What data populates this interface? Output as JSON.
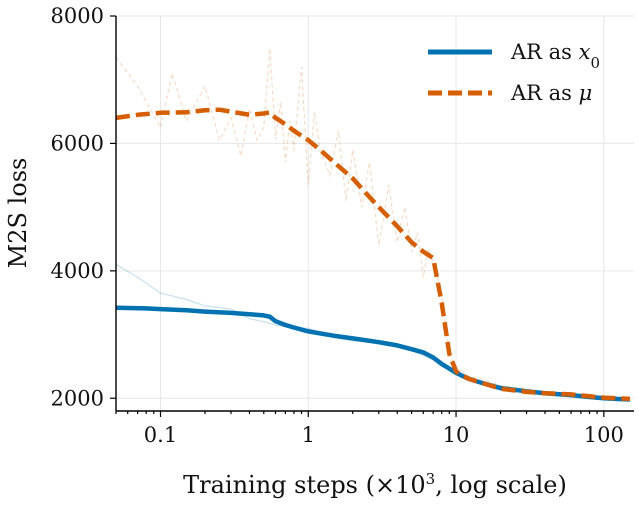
{
  "chart_data": {
    "type": "line",
    "xlabel_parts": [
      "Training steps (×10",
      "3",
      ", log scale)"
    ],
    "ylabel": "M2S loss",
    "xscale": "log",
    "xlim": [
      0.05,
      160
    ],
    "ylim": [
      1800,
      8000
    ],
    "grid": true,
    "legend_placement": "top-right",
    "x_ticks": [
      {
        "value": 0.1,
        "label": "0.1"
      },
      {
        "value": 1,
        "label": "1"
      },
      {
        "value": 10,
        "label": "10"
      },
      {
        "value": 100,
        "label": "100"
      }
    ],
    "y_ticks": [
      {
        "value": 2000,
        "label": "2000"
      },
      {
        "value": 4000,
        "label": "4000"
      },
      {
        "value": 6000,
        "label": "6000"
      },
      {
        "value": 8000,
        "label": "8000"
      }
    ],
    "series": [
      {
        "name_parts": {
          "text": "AR as ",
          "math": "x",
          "sub": "0"
        },
        "color": "#0072b2",
        "style": "solid",
        "smoothed": {
          "x": [
            0.05,
            0.08,
            0.1,
            0.15,
            0.2,
            0.3,
            0.4,
            0.5,
            0.55,
            0.6,
            0.7,
            0.8,
            1,
            1.5,
            2,
            3,
            4,
            5,
            6,
            7,
            8,
            10,
            12,
            15,
            20,
            30,
            40,
            60,
            80,
            100,
            120,
            150
          ],
          "y": [
            3420,
            3410,
            3400,
            3380,
            3360,
            3340,
            3320,
            3300,
            3280,
            3210,
            3150,
            3110,
            3050,
            2980,
            2940,
            2880,
            2830,
            2770,
            2720,
            2640,
            2540,
            2400,
            2310,
            2240,
            2160,
            2110,
            2080,
            2050,
            2020,
            2000,
            1990,
            1980
          ]
        },
        "raw": {
          "x": [
            0.05,
            0.07,
            0.1,
            0.15,
            0.2,
            0.3,
            0.4,
            0.5,
            0.6,
            0.8,
            1,
            1.5,
            2,
            3,
            5,
            7,
            8,
            10,
            12,
            15,
            20,
            30,
            40,
            60,
            80,
            100,
            150
          ],
          "y": [
            4100,
            3900,
            3650,
            3550,
            3450,
            3400,
            3250,
            3200,
            3150,
            3100,
            3100,
            2950,
            2900,
            2880,
            2750,
            2600,
            2500,
            2400,
            2350,
            2250,
            2150,
            2100,
            2050,
            2030,
            2000,
            1980,
            1960
          ]
        }
      },
      {
        "name_parts": {
          "text": "AR as ",
          "math": "μ",
          "sub": ""
        },
        "color": "#d55e00",
        "style": "dashed",
        "smoothed": {
          "x": [
            0.05,
            0.07,
            0.1,
            0.15,
            0.2,
            0.25,
            0.3,
            0.4,
            0.5,
            0.55,
            0.6,
            0.7,
            0.8,
            1,
            1.2,
            1.5,
            2,
            2.5,
            3,
            4,
            5,
            6,
            7,
            8,
            9,
            10,
            12,
            15,
            20,
            30,
            40,
            60,
            80,
            100,
            120,
            150
          ],
          "y": [
            6400,
            6450,
            6480,
            6490,
            6520,
            6530,
            6500,
            6450,
            6470,
            6490,
            6400,
            6300,
            6200,
            6050,
            5900,
            5700,
            5450,
            5200,
            5000,
            4700,
            4450,
            4300,
            4200,
            3500,
            2700,
            2420,
            2310,
            2240,
            2150,
            2100,
            2080,
            2060,
            2030,
            2010,
            2000,
            1990
          ]
        },
        "raw": {
          "x": [
            0.05,
            0.07,
            0.1,
            0.12,
            0.15,
            0.2,
            0.25,
            0.3,
            0.35,
            0.4,
            0.45,
            0.5,
            0.55,
            0.6,
            0.65,
            0.7,
            0.75,
            0.8,
            0.9,
            1,
            1.1,
            1.2,
            1.4,
            1.6,
            1.8,
            2,
            2.3,
            2.6,
            3,
            3.5,
            4,
            4.5,
            5,
            5.5,
            6,
            6.5,
            7,
            8,
            9,
            10,
            12,
            15,
            20,
            30,
            40,
            60,
            80,
            100,
            120,
            150
          ],
          "y": [
            7350,
            6900,
            6250,
            7100,
            6350,
            6900,
            6050,
            6400,
            5800,
            6550,
            6050,
            6250,
            7500,
            6050,
            6650,
            5700,
            6350,
            5900,
            7200,
            5350,
            6500,
            5900,
            5500,
            6200,
            5100,
            5900,
            5000,
            5700,
            4400,
            5350,
            4450,
            5000,
            4300,
            4600,
            3900,
            4350,
            4150,
            3600,
            2700,
            2500,
            2350,
            2300,
            2200,
            2150,
            2100,
            2080,
            2050,
            2020,
            2010,
            2000
          ]
        }
      }
    ]
  }
}
